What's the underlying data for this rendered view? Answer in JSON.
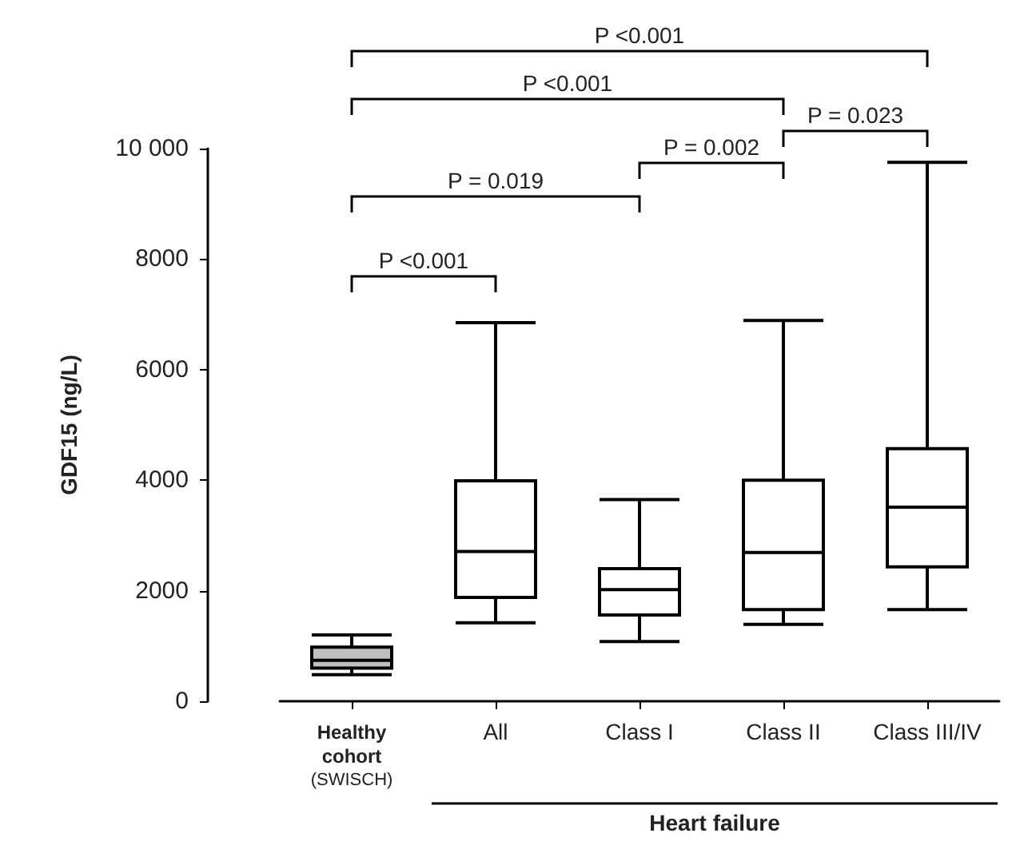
{
  "chart_data": {
    "type": "box",
    "ylabel": "GDF15 (ng/L)",
    "categories": [
      "Healthy\ncohort\n(SWISCH)",
      "All",
      "Class I",
      "Class II",
      "Class III/IV"
    ],
    "colors": [
      "#c0c0c0",
      "#ffffff",
      "#ffffff",
      "#ffffff",
      "#ffffff"
    ],
    "boxes": [
      {
        "low": 480,
        "q1": 600,
        "median": 740,
        "q3": 980,
        "high": 1200
      },
      {
        "low": 1420,
        "q1": 1880,
        "median": 2710,
        "q3": 3990,
        "high": 6850
      },
      {
        "low": 1080,
        "q1": 1560,
        "median": 2020,
        "q3": 2400,
        "high": 3650
      },
      {
        "low": 1390,
        "q1": 1660,
        "median": 2690,
        "q3": 4000,
        "high": 6890
      },
      {
        "low": 1660,
        "q1": 2430,
        "median": 3510,
        "q3": 4570,
        "high": 9750
      }
    ],
    "ylim": [
      0,
      10000
    ],
    "yticks": [
      0,
      2000,
      4000,
      6000,
      8000,
      {
        "value": 10000,
        "label": "10 000"
      }
    ],
    "annotations": [
      "P <0.001",
      "P <0.001",
      "P = 0.023",
      "P = 0.002",
      "P = 0.019",
      "P <0.001",
      "Heart failure"
    ]
  }
}
